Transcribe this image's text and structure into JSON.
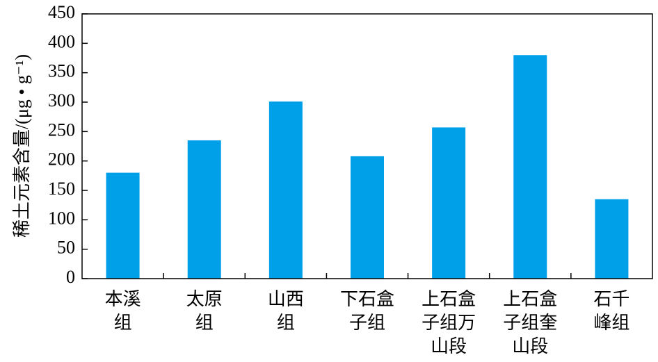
{
  "chart_data": {
    "type": "bar",
    "ylabel": "稀土元素含量/(μg • g⁻¹)",
    "categories": [
      [
        "本溪",
        "组"
      ],
      [
        "太原",
        "组"
      ],
      [
        "山西",
        "组"
      ],
      [
        "下石盒",
        "子组"
      ],
      [
        "上石盒",
        "子组万",
        "山段"
      ],
      [
        "上石盒",
        "子组奎",
        "山段"
      ],
      [
        "石千",
        "峰组"
      ]
    ],
    "values": [
      180,
      235,
      301,
      208,
      257,
      380,
      135
    ],
    "color": "#00a0e9",
    "ylim": [
      0,
      450
    ],
    "yticks": [
      0,
      50,
      100,
      150,
      200,
      250,
      300,
      350,
      400,
      450
    ],
    "grid": false
  }
}
